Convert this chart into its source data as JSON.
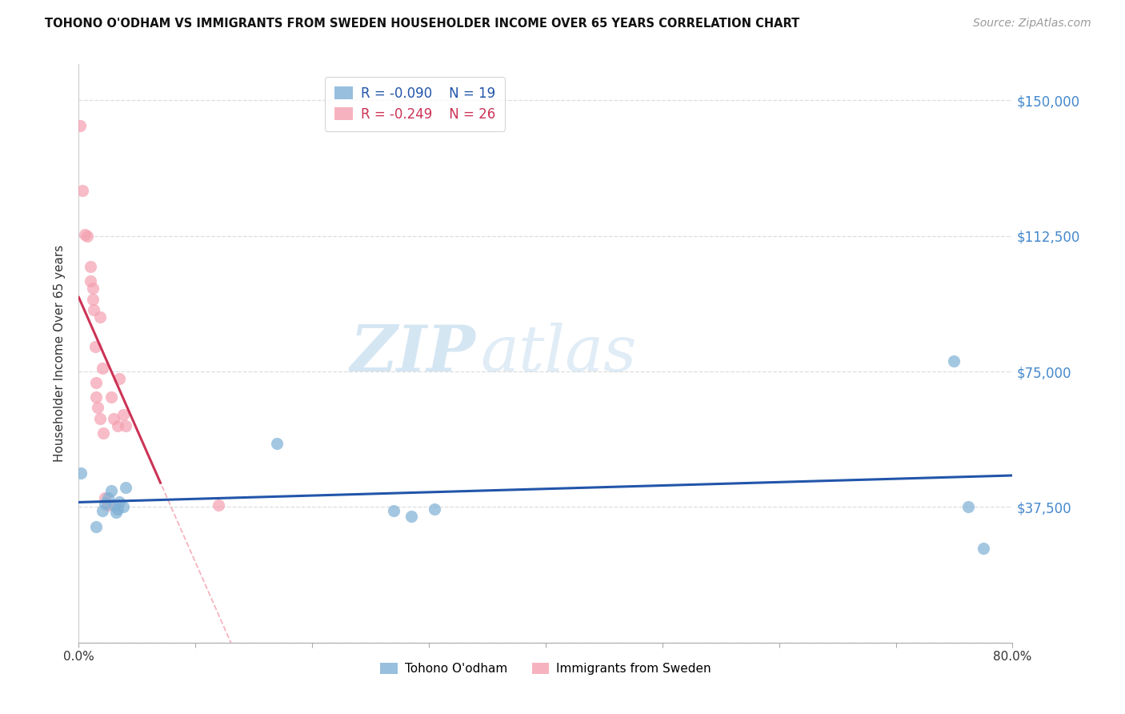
{
  "title": "TOHONO O'ODHAM VS IMMIGRANTS FROM SWEDEN HOUSEHOLDER INCOME OVER 65 YEARS CORRELATION CHART",
  "source": "Source: ZipAtlas.com",
  "ylabel": "Householder Income Over 65 years",
  "xlim": [
    0,
    0.8
  ],
  "ylim": [
    0,
    160000
  ],
  "yticks": [
    0,
    37500,
    75000,
    112500,
    150000
  ],
  "ytick_labels": [
    "",
    "$37,500",
    "$75,000",
    "$112,500",
    "$150,000"
  ],
  "xticks": [
    0.0,
    0.1,
    0.2,
    0.3,
    0.4,
    0.5,
    0.6,
    0.7,
    0.8
  ],
  "xtick_labels": [
    "0.0%",
    "",
    "",
    "",
    "",
    "",
    "",
    "",
    "80.0%"
  ],
  "blue_color": "#7EB0D5",
  "pink_color": "#F4A0B0",
  "blue_line_color": "#2255AA",
  "pink_line_color": "#CC3355",
  "pink_dash_color": "#F4A0B0",
  "watermark_zip": "ZIP",
  "watermark_atlas": "atlas",
  "legend_R_blue": "-0.090",
  "legend_N_blue": "19",
  "legend_R_pink": "-0.249",
  "legend_N_pink": "26",
  "legend_label_blue": "Tohono O'odham",
  "legend_label_pink": "Immigrants from Sweden",
  "dot_size": 120,
  "blue_scatter_x": [
    0.002,
    0.015,
    0.02,
    0.022,
    0.025,
    0.028,
    0.03,
    0.032,
    0.033,
    0.035,
    0.038,
    0.04,
    0.17,
    0.27,
    0.285,
    0.305,
    0.75,
    0.762,
    0.775
  ],
  "blue_scatter_y": [
    47000,
    32000,
    36500,
    38500,
    40000,
    42000,
    38000,
    36000,
    37000,
    39000,
    37500,
    43000,
    55000,
    36500,
    35000,
    37000,
    78000,
    37500,
    26000
  ],
  "pink_scatter_x": [
    0.001,
    0.003,
    0.005,
    0.007,
    0.01,
    0.01,
    0.012,
    0.012,
    0.013,
    0.014,
    0.015,
    0.015,
    0.016,
    0.018,
    0.018,
    0.02,
    0.021,
    0.022,
    0.025,
    0.028,
    0.03,
    0.033,
    0.035,
    0.038,
    0.04,
    0.12
  ],
  "pink_scatter_y": [
    143000,
    125000,
    113000,
    112500,
    104000,
    100000,
    98000,
    95000,
    92000,
    82000,
    72000,
    68000,
    65000,
    62000,
    90000,
    76000,
    58000,
    40000,
    38000,
    68000,
    62000,
    60000,
    73000,
    63000,
    60000,
    38000
  ]
}
